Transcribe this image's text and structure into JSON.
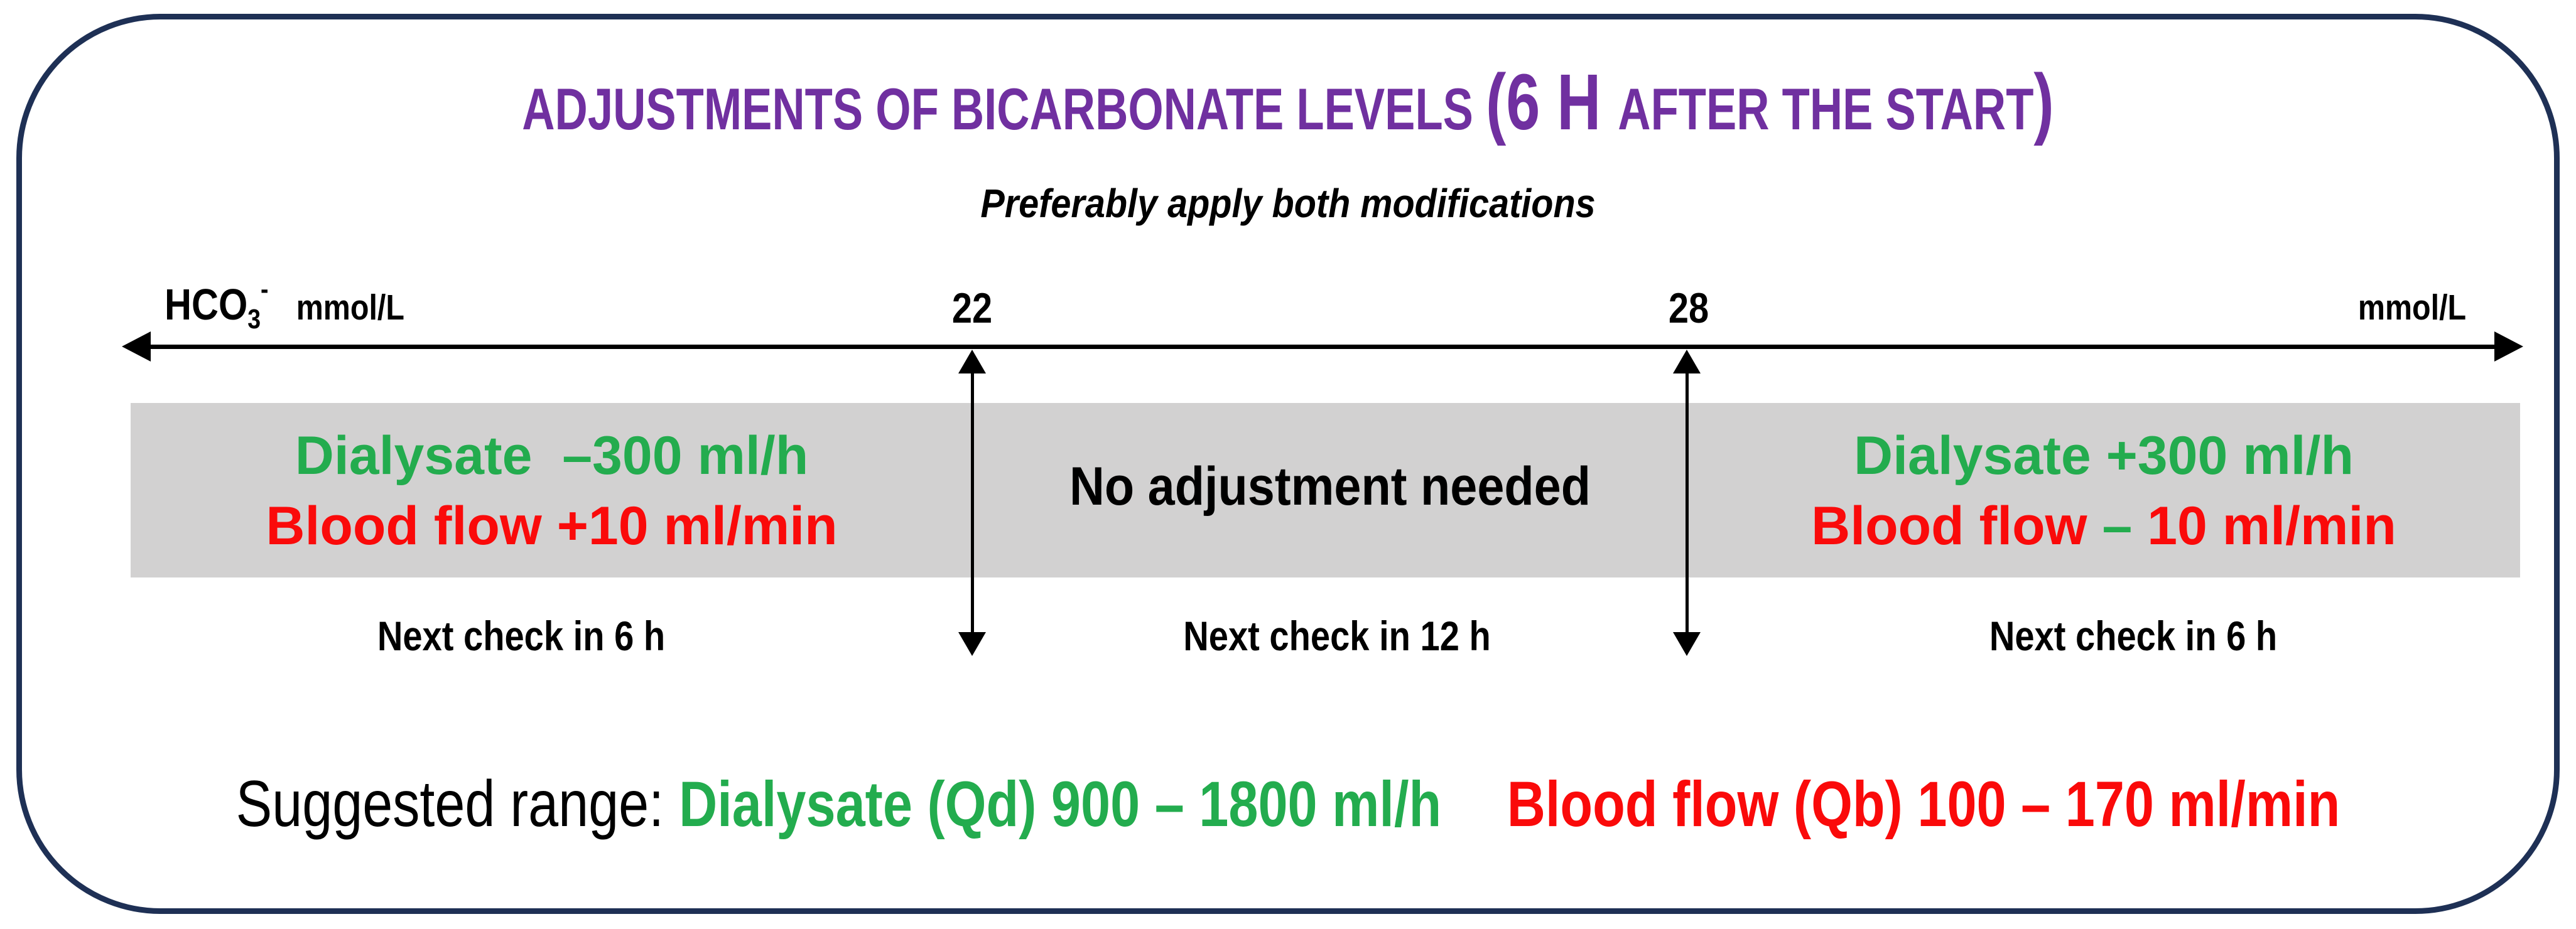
{
  "colors": {
    "border_navy": "#1e3055",
    "title_purple": "#7030a0",
    "dialysate_green": "#23ac4e",
    "blood_flow_red": "#fa0a0a",
    "band_gray": "#d2d1d1",
    "text_black": "#000000"
  },
  "title": {
    "part1": "ADJUSTMENTS OF BICARBONATE LEVELS ",
    "part2": "(6 H ",
    "part3": "AFTER THE START",
    "part4": ")"
  },
  "subtitle": "Preferably apply both modifications",
  "axis": {
    "analyte": "HCO",
    "analyte_sub": "3",
    "analyte_sup": "-",
    "unit_left": "mmol/L",
    "tick_low": "22",
    "tick_high": "28",
    "unit_right": "mmol/L"
  },
  "zones": {
    "low": {
      "line1": "Dialysate  –300 ml/h",
      "line2": "Blood flow +10 ml/min",
      "next_check": "Next check in 6 h"
    },
    "mid": {
      "line1": "No adjustment needed",
      "next_check": "Next check in 12 h"
    },
    "high": {
      "line1": "Dialysate +300 ml/h",
      "line2_pre": "Blood flow ",
      "line2_dash": "–",
      "line2_post": " 10 ml/min",
      "next_check": "Next check in 6 h"
    }
  },
  "footer": {
    "label": "Suggested range: ",
    "dialysate": "Dialysate (Qd) 900 – 1800 ml/h",
    "blood_flow": "Blood flow (Qb) 100 – 170 ml/min"
  }
}
